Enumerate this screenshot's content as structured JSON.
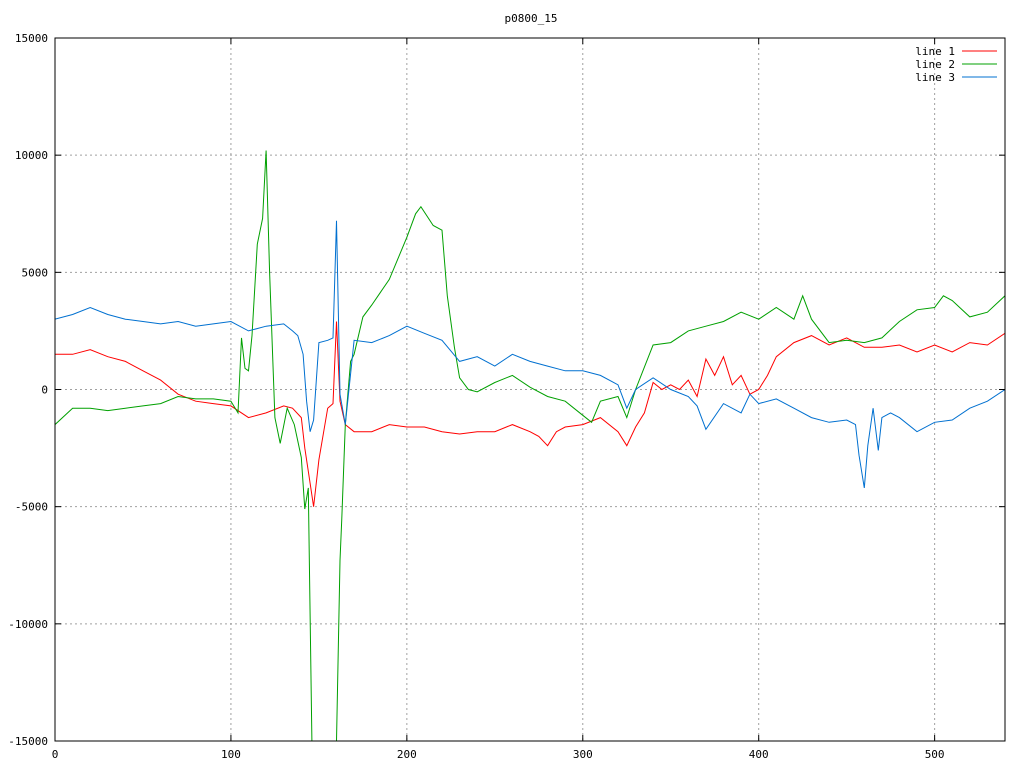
{
  "chart_data": {
    "type": "line",
    "title": "p0800_15",
    "xlabel": "",
    "ylabel": "",
    "xlim": [
      0,
      540
    ],
    "ylim": [
      -15000,
      15000
    ],
    "x_ticks": [
      0,
      100,
      200,
      300,
      400,
      500
    ],
    "y_ticks": [
      -15000,
      -10000,
      -5000,
      0,
      5000,
      10000,
      15000
    ],
    "grid": true,
    "legend_position": "top-right",
    "series": [
      {
        "name": "line 1",
        "color": "#ff0000",
        "x": [
          0,
          10,
          20,
          30,
          40,
          50,
          60,
          70,
          80,
          90,
          100,
          110,
          120,
          130,
          135,
          140,
          142,
          145,
          147,
          150,
          155,
          158,
          160,
          162,
          165,
          170,
          180,
          190,
          200,
          210,
          220,
          230,
          240,
          250,
          260,
          270,
          275,
          280,
          285,
          290,
          300,
          310,
          320,
          325,
          330,
          335,
          340,
          345,
          350,
          355,
          360,
          365,
          370,
          375,
          380,
          385,
          390,
          395,
          400,
          405,
          410,
          420,
          430,
          440,
          450,
          460,
          470,
          480,
          490,
          500,
          510,
          520,
          530,
          540
        ],
        "y": [
          1500,
          1500,
          1700,
          1400,
          1200,
          800,
          400,
          -200,
          -500,
          -600,
          -700,
          -1200,
          -1000,
          -700,
          -800,
          -1200,
          -2500,
          -4000,
          -5000,
          -3000,
          -800,
          -600,
          2900,
          -500,
          -1500,
          -1800,
          -1800,
          -1500,
          -1600,
          -1600,
          -1800,
          -1900,
          -1800,
          -1800,
          -1500,
          -1800,
          -2000,
          -2400,
          -1800,
          -1600,
          -1500,
          -1200,
          -1800,
          -2400,
          -1600,
          -1000,
          300,
          0,
          200,
          0,
          400,
          -300,
          1300,
          600,
          1400,
          200,
          600,
          -200,
          0,
          600,
          1400,
          2000,
          2300,
          1900,
          2200,
          1800,
          1800,
          1900,
          1600,
          1900,
          1600,
          2000,
          1900,
          2400
        ]
      },
      {
        "name": "line 2",
        "color": "#00a000",
        "x": [
          0,
          10,
          20,
          30,
          40,
          50,
          60,
          70,
          80,
          90,
          100,
          104,
          106,
          108,
          110,
          112,
          115,
          118,
          120,
          122,
          125,
          128,
          132,
          136,
          140,
          142,
          144,
          146,
          148,
          150,
          152,
          154,
          157,
          160,
          162,
          163,
          165,
          168,
          170,
          175,
          180,
          190,
          200,
          205,
          208,
          215,
          220,
          223,
          227,
          230,
          235,
          240,
          250,
          260,
          270,
          280,
          290,
          300,
          305,
          310,
          320,
          325,
          330,
          340,
          350,
          360,
          370,
          380,
          390,
          400,
          410,
          420,
          425,
          430,
          440,
          450,
          460,
          470,
          480,
          490,
          500,
          505,
          510,
          520,
          530,
          540
        ],
        "y": [
          -1500,
          -800,
          -800,
          -900,
          -800,
          -700,
          -600,
          -300,
          -400,
          -400,
          -500,
          -1000,
          2200,
          900,
          800,
          2300,
          6200,
          7300,
          10200,
          5000,
          -1200,
          -2300,
          -800,
          -1500,
          -2900,
          -5100,
          -4200,
          -15000,
          -15000,
          -15000,
          -15000,
          -15000,
          -15000,
          -15000,
          -7300,
          -5500,
          -1500,
          1200,
          1500,
          3100,
          3600,
          4700,
          6500,
          7500,
          7800,
          7000,
          6800,
          4000,
          1800,
          500,
          0,
          -100,
          300,
          600,
          100,
          -300,
          -500,
          -1100,
          -1400,
          -500,
          -300,
          -1200,
          0,
          1900,
          2000,
          2500,
          2700,
          2900,
          3300,
          3000,
          3500,
          3000,
          4000,
          3000,
          2000,
          2100,
          2000,
          2200,
          2900,
          3400,
          3500,
          4000,
          3800,
          3100,
          3300,
          4000
        ]
      },
      {
        "name": "line 3",
        "color": "#0070d0",
        "x": [
          0,
          10,
          20,
          30,
          40,
          50,
          60,
          70,
          80,
          90,
          100,
          110,
          120,
          130,
          135,
          138,
          141,
          143,
          145,
          147,
          150,
          155,
          158,
          160,
          162,
          165,
          170,
          180,
          190,
          200,
          210,
          220,
          230,
          240,
          250,
          260,
          270,
          280,
          290,
          300,
          310,
          320,
          325,
          330,
          340,
          350,
          360,
          365,
          370,
          380,
          390,
          395,
          400,
          410,
          420,
          430,
          440,
          450,
          455,
          457,
          460,
          462,
          465,
          468,
          470,
          475,
          480,
          490,
          500,
          510,
          520,
          530,
          540
        ],
        "y": [
          3000,
          3200,
          3500,
          3200,
          3000,
          2900,
          2800,
          2900,
          2700,
          2800,
          2900,
          2500,
          2700,
          2800,
          2500,
          2300,
          1500,
          -500,
          -1800,
          -1300,
          2000,
          2100,
          2200,
          7200,
          -200,
          -1500,
          2100,
          2000,
          2300,
          2700,
          2400,
          2100,
          1200,
          1400,
          1000,
          1500,
          1200,
          1000,
          800,
          800,
          600,
          200,
          -800,
          0,
          500,
          0,
          -300,
          -700,
          -1700,
          -600,
          -1000,
          -200,
          -600,
          -400,
          -800,
          -1200,
          -1400,
          -1300,
          -1500,
          -2800,
          -4200,
          -2400,
          -800,
          -2600,
          -1200,
          -1000,
          -1200,
          -1800,
          -1400,
          -1300,
          -800,
          -500,
          0
        ]
      }
    ]
  }
}
